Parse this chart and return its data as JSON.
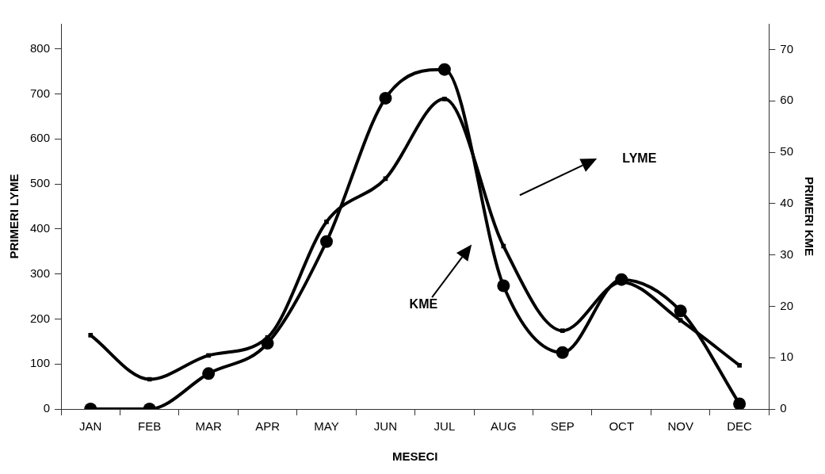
{
  "chart_data": {
    "type": "line",
    "xlabel": "MESECI",
    "ylabel": "PRIMERI LYME",
    "y2label": "PRIMERI KME",
    "categories": [
      "JAN",
      "FEB",
      "MAR",
      "APR",
      "MAY",
      "JUN",
      "JUL",
      "AUG",
      "SEP",
      "OCT",
      "NOV",
      "DEC"
    ],
    "series": [
      {
        "color": "#000000",
        "marker": "square",
        "values": [
          164,
          66,
          119,
          159,
          416,
          512,
          689,
          362,
          174,
          282,
          197,
          97
        ]
      },
      {
        "color": "#000000",
        "marker": "circle",
        "axis": "y2",
        "values": [
          0,
          0,
          6.9,
          12.8,
          32.6,
          60.5,
          66.1,
          24,
          11,
          25.2,
          19.1,
          1
        ]
      }
    ],
    "ylim": [
      0,
      856
    ],
    "yticks": [
      0,
      100,
      200,
      300,
      400,
      500,
      600,
      700,
      800
    ],
    "y2lim": [
      0,
      75
    ],
    "y2ticks": [
      0,
      10,
      20,
      30,
      40,
      50,
      60,
      70
    ],
    "annotations": [
      "LYME",
      "KME"
    ],
    "grid": false,
    "legend": false,
    "line_style": "solid"
  }
}
